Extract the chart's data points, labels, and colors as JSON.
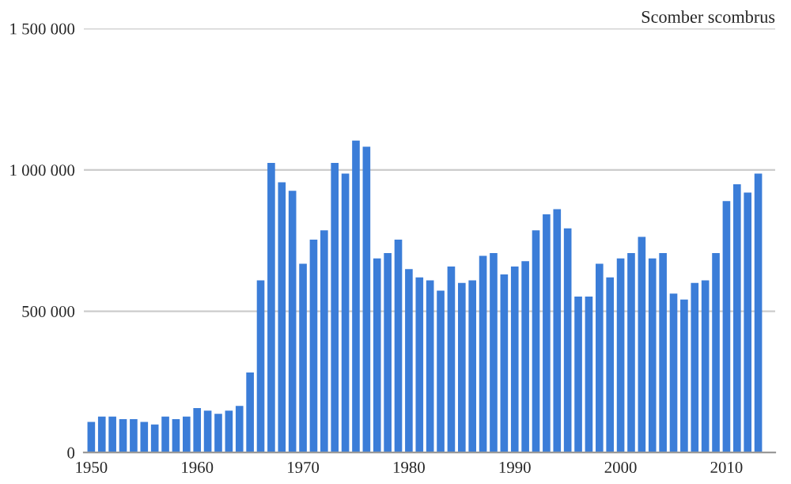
{
  "chart_data": {
    "type": "bar",
    "title": "Scomber scombrus",
    "x": [
      1950,
      1951,
      1952,
      1953,
      1954,
      1955,
      1956,
      1957,
      1958,
      1959,
      1960,
      1961,
      1962,
      1963,
      1964,
      1965,
      1966,
      1967,
      1968,
      1969,
      1970,
      1971,
      1972,
      1973,
      1974,
      1975,
      1976,
      1977,
      1978,
      1979,
      1980,
      1981,
      1982,
      1983,
      1984,
      1985,
      1986,
      1987,
      1988,
      1989,
      1990,
      1991,
      1992,
      1993,
      1994,
      1995,
      1996,
      1997,
      1998,
      1999,
      2000,
      2001,
      2002,
      2003,
      2004,
      2005,
      2006,
      2007,
      2008,
      2009,
      2010,
      2011,
      2012,
      2013
    ],
    "values": [
      108000,
      127000,
      127000,
      118000,
      118000,
      108000,
      99000,
      127000,
      118000,
      127000,
      157000,
      148000,
      137000,
      148000,
      165000,
      283000,
      609000,
      1025000,
      956000,
      926000,
      668000,
      753000,
      786000,
      1025000,
      987000,
      1104000,
      1082000,
      687000,
      706000,
      753000,
      649000,
      620000,
      609000,
      573000,
      658000,
      600000,
      609000,
      696000,
      706000,
      630000,
      658000,
      677000,
      786000,
      843000,
      861000,
      793000,
      552000,
      552000,
      668000,
      620000,
      687000,
      706000,
      763000,
      687000,
      706000,
      562000,
      541000,
      600000,
      609000,
      706000,
      890000,
      949000,
      920000,
      987000
    ],
    "color": "#3b7dd8",
    "xlim": [
      1949.3,
      2014.6
    ],
    "xticks": [
      1950,
      1960,
      1970,
      1980,
      1990,
      2000,
      2010
    ],
    "ylim": [
      0,
      1500000
    ],
    "yticks": [
      {
        "value": 0,
        "label": "0"
      },
      {
        "value": 500000,
        "label": "500 000"
      },
      {
        "value": 1000000,
        "label": "1 000 000"
      },
      {
        "value": 1500000,
        "label": "1 500 000"
      }
    ],
    "grid": "y",
    "legend": false
  }
}
